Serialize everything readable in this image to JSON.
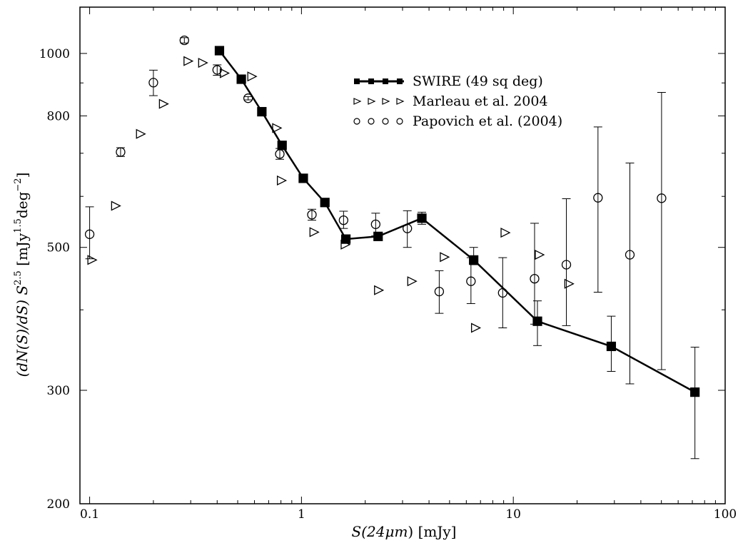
{
  "chart_data": {
    "type": "scatter",
    "x_scale": "log",
    "y_scale": "log",
    "xlim": [
      0.09,
      100
    ],
    "ylim": [
      200,
      1180
    ],
    "grid": false,
    "legend_position": "upper-right",
    "xlabel_parts": {
      "main": "S(24",
      "greek": "μm",
      "close": ")",
      "units": " [mJy]"
    },
    "ylabel_parts": {
      "main": "(dN(S)/dS) S",
      "exp": "2.5",
      "units_open": " [mJy",
      "units_exp1": "1.5",
      "units_mid": "deg",
      "units_exp2": "−2",
      "units_close": "]"
    },
    "x_ticks": [
      {
        "value": 0.1,
        "label": "0.1"
      },
      {
        "value": 1,
        "label": "1"
      },
      {
        "value": 10,
        "label": "10"
      },
      {
        "value": 100,
        "label": "100"
      }
    ],
    "y_ticks": [
      {
        "value": 200,
        "label": "200"
      },
      {
        "value": 300,
        "label": "300"
      },
      {
        "value": 500,
        "label": "500"
      },
      {
        "value": 800,
        "label": "800"
      },
      {
        "value": 1000,
        "label": "1000"
      }
    ],
    "series": [
      {
        "name": "SWIRE (49 sq deg)",
        "marker": "square",
        "filled": true,
        "line": true,
        "color": "#000000",
        "points": [
          {
            "x": 0.41,
            "y": 1010
          },
          {
            "x": 0.52,
            "y": 912
          },
          {
            "x": 0.65,
            "y": 812
          },
          {
            "x": 0.81,
            "y": 720
          },
          {
            "x": 1.02,
            "y": 640
          },
          {
            "x": 1.29,
            "y": 587
          },
          {
            "x": 1.62,
            "y": 515
          },
          {
            "x": 2.3,
            "y": 520
          },
          {
            "x": 3.7,
            "y": 555,
            "yerr": [
              543,
              567
            ]
          },
          {
            "x": 6.5,
            "y": 478,
            "yerr": [
              470,
              500
            ]
          },
          {
            "x": 13,
            "y": 384,
            "yerr": [
              352,
              413
            ]
          },
          {
            "x": 29,
            "y": 351,
            "yerr": [
              321,
              391
            ]
          },
          {
            "x": 72,
            "y": 298,
            "yerr": [
              235,
              350
            ]
          }
        ]
      },
      {
        "name": "Marleau et al. 2004",
        "marker": "triangle-right",
        "filled": false,
        "line": false,
        "color": "#000000",
        "points": [
          {
            "x": 0.102,
            "y": 478
          },
          {
            "x": 0.132,
            "y": 580
          },
          {
            "x": 0.173,
            "y": 750
          },
          {
            "x": 0.222,
            "y": 835
          },
          {
            "x": 0.29,
            "y": 973
          },
          {
            "x": 0.34,
            "y": 967
          },
          {
            "x": 0.43,
            "y": 932
          },
          {
            "x": 0.58,
            "y": 921
          },
          {
            "x": 0.76,
            "y": 766
          },
          {
            "x": 0.8,
            "y": 635
          },
          {
            "x": 1.14,
            "y": 528
          },
          {
            "x": 1.6,
            "y": 505
          },
          {
            "x": 2.3,
            "y": 429
          },
          {
            "x": 3.3,
            "y": 443
          },
          {
            "x": 4.7,
            "y": 483
          },
          {
            "x": 6.6,
            "y": 375
          },
          {
            "x": 9.1,
            "y": 527
          },
          {
            "x": 13.2,
            "y": 487
          },
          {
            "x": 18.2,
            "y": 439
          }
        ]
      },
      {
        "name": "Papovich et al. (2004)",
        "marker": "circle",
        "filled": false,
        "line": false,
        "color": "#000000",
        "points": [
          {
            "x": 0.1,
            "y": 524,
            "yerr": [
              480,
              578
            ]
          },
          {
            "x": 0.14,
            "y": 703,
            "yerr": [
              692,
              714
            ]
          },
          {
            "x": 0.2,
            "y": 901,
            "yerr": [
              860,
              942
            ]
          },
          {
            "x": 0.28,
            "y": 1048,
            "yerr": [
              1038,
              1058
            ]
          },
          {
            "x": 0.4,
            "y": 943,
            "yerr": [
              925,
              960
            ]
          },
          {
            "x": 0.56,
            "y": 852,
            "yerr": [
              847,
              857
            ]
          },
          {
            "x": 0.79,
            "y": 698,
            "yerr": [
              685,
              712
            ]
          },
          {
            "x": 1.12,
            "y": 562,
            "yerr": [
              551,
              573
            ]
          },
          {
            "x": 1.58,
            "y": 551,
            "yerr": [
              535,
              569
            ]
          },
          {
            "x": 2.24,
            "y": 543,
            "yerr": [
              521,
              565
            ]
          },
          {
            "x": 3.16,
            "y": 535,
            "yerr": [
              500,
              570
            ]
          },
          {
            "x": 4.47,
            "y": 427,
            "yerr": [
              395,
              460
            ]
          },
          {
            "x": 6.31,
            "y": 443,
            "yerr": [
              409,
              482
            ]
          },
          {
            "x": 8.91,
            "y": 425,
            "yerr": [
              375,
              482
            ]
          },
          {
            "x": 12.6,
            "y": 447,
            "yerr": [
              380,
              545
            ]
          },
          {
            "x": 17.8,
            "y": 470,
            "yerr": [
              378,
              595
            ]
          },
          {
            "x": 25.1,
            "y": 597,
            "yerr": [
              426,
              769
            ]
          },
          {
            "x": 35.5,
            "y": 487,
            "yerr": [
              307,
              676
            ]
          },
          {
            "x": 50.1,
            "y": 596,
            "yerr": [
              323,
              870
            ]
          }
        ]
      }
    ]
  }
}
